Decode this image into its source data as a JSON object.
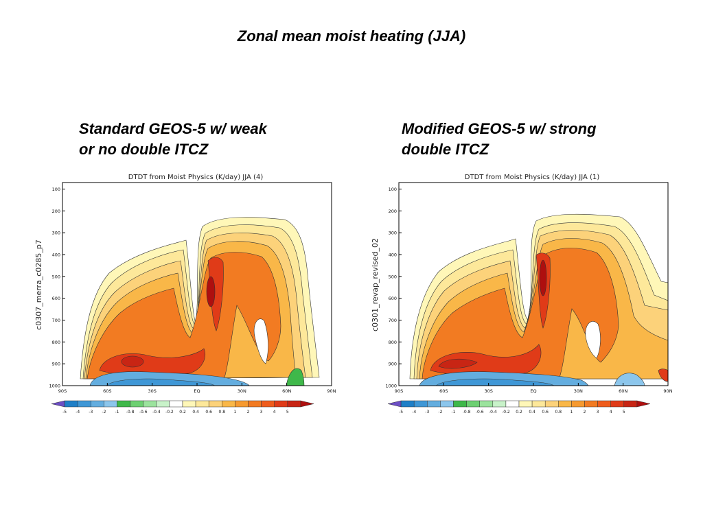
{
  "slide_title": "Zonal mean moist heating (JJA)",
  "colors": {
    "bands": [
      "#6c4ec4",
      "#1f7fc7",
      "#3f97d6",
      "#63addf",
      "#8cc6ec",
      "#3fb84a",
      "#6dd072",
      "#9be39d",
      "#c8f2c9",
      "#ffffff",
      "#fff7b8",
      "#fde89a",
      "#fcd27a",
      "#f9b748",
      "#f69a30",
      "#f27b22",
      "#ef5c1c",
      "#e03b18",
      "#c82514",
      "#ae0f0f"
    ]
  },
  "chart_data": [
    {
      "type": "heatmap",
      "heading": [
        "Standard GEOS-5 w/ weak",
        "or no double ITCZ"
      ],
      "title": "DTDT  from  Moist  Physics  (K/day)   JJA  (4)",
      "ylabel": "c0307_merra_c0285_p7",
      "x_ticks": [
        "90S",
        "60S",
        "30S",
        "EQ",
        "30N",
        "60N",
        "90N"
      ],
      "y_ticks": [
        "100",
        "200",
        "300",
        "400",
        "500",
        "600",
        "700",
        "800",
        "900",
        "1000"
      ],
      "colorbar_labels": [
        "-5",
        "-4",
        "-3",
        "-2",
        "-1",
        "-0.8",
        "-0.6",
        "-0.4",
        "-0.2",
        "0.2",
        "0.4",
        "0.6",
        "0.8",
        "1",
        "2",
        "3",
        "4",
        "5"
      ]
    },
    {
      "type": "heatmap",
      "heading": [
        "Modified GEOS-5 w/ strong",
        "double ITCZ"
      ],
      "title": "DTDT  from  Moist  Physics  (K/day)   JJA  (1)",
      "ylabel": "c0301_revap_revised_02",
      "x_ticks": [
        "90S",
        "60S",
        "30S",
        "EQ",
        "30N",
        "60N",
        "90N"
      ],
      "y_ticks": [
        "100",
        "200",
        "300",
        "400",
        "500",
        "600",
        "700",
        "800",
        "900",
        "1000"
      ],
      "colorbar_labels": [
        "-5",
        "-4",
        "-3",
        "-2",
        "-1",
        "-0.8",
        "-0.6",
        "-0.4",
        "-0.2",
        "0.2",
        "0.4",
        "0.6",
        "0.8",
        "1",
        "2",
        "3",
        "4",
        "5"
      ]
    }
  ]
}
